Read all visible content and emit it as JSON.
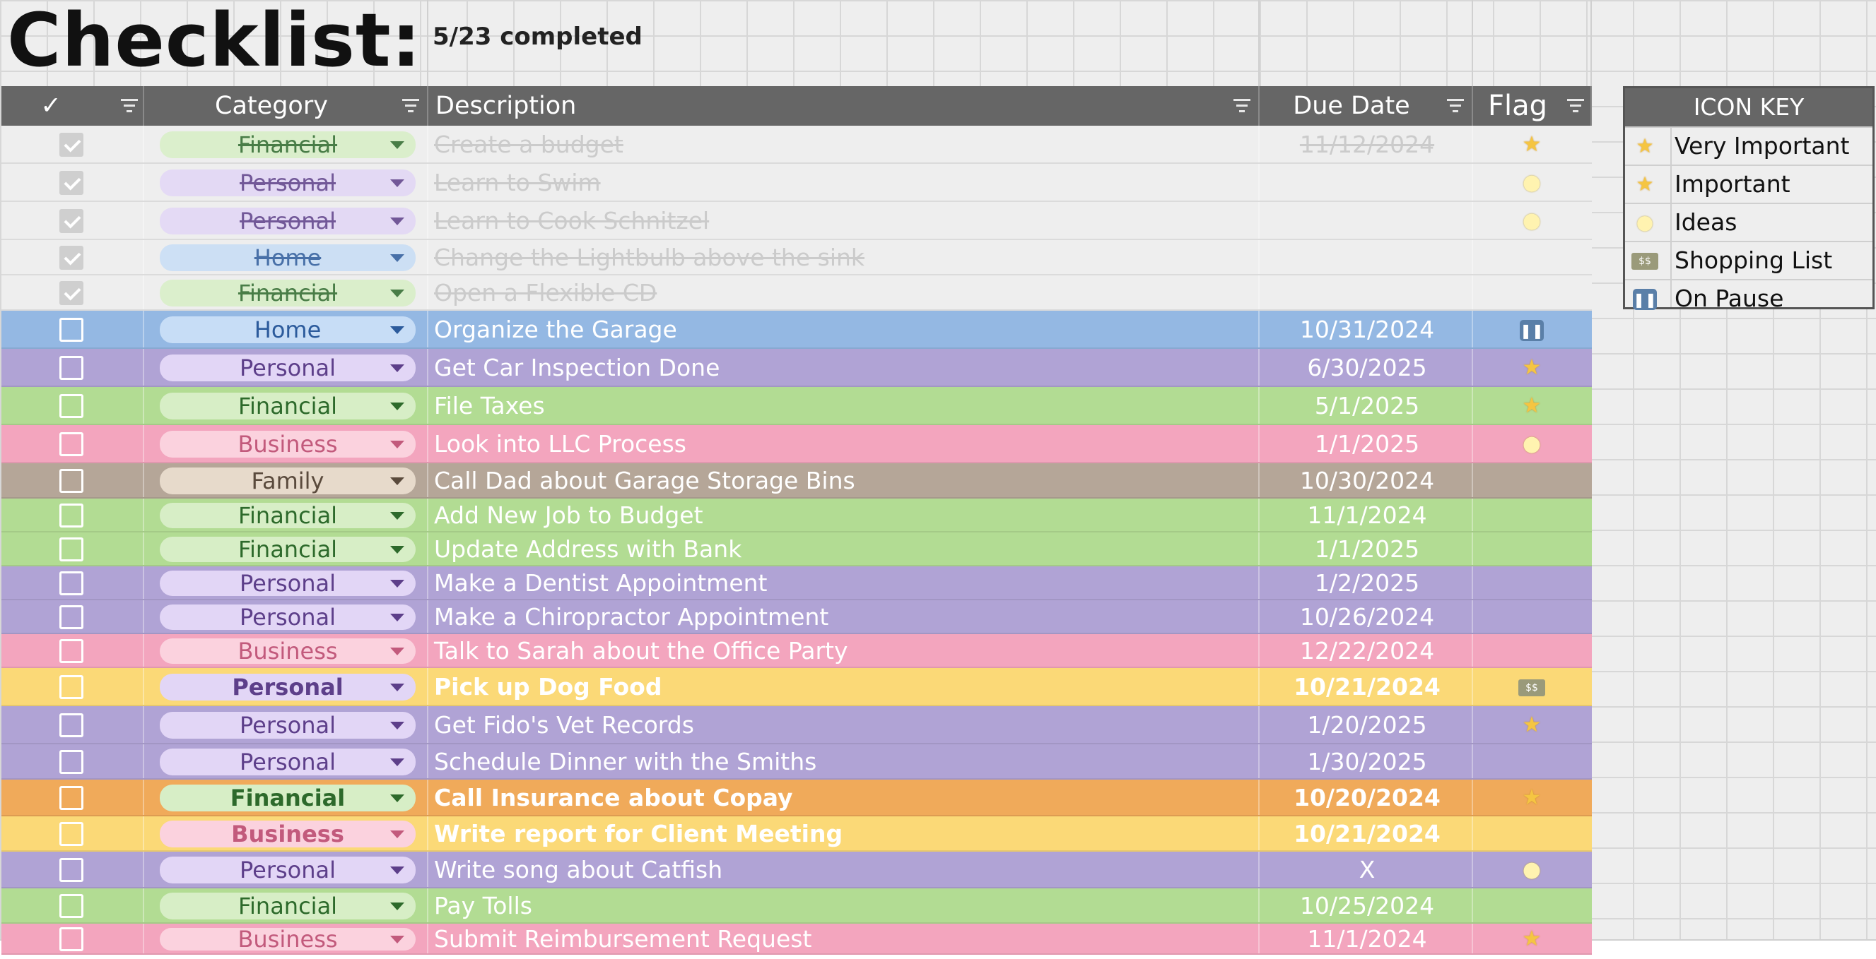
{
  "sheet": {
    "title": "Checklist:",
    "completed_text": "5/23 completed"
  },
  "header": {
    "check_label": "✓",
    "category_label": "Category",
    "description_label": "Description",
    "due_label": "Due Date",
    "flag_label": "Flag"
  },
  "colors": {
    "header_bg": "#666666",
    "done_row": "#eeeeee",
    "Home": "#94b8e3",
    "Personal": "#b0a3d5",
    "Financial": "#b2dc93",
    "Business": "#f3a5be",
    "Family": "#b5a698",
    "Yellow": "#fbd977",
    "Orange": "#f0aa5a"
  },
  "tasks": [
    {
      "done": true,
      "category": "Financial",
      "description": "Create a budget",
      "due": "11/12/2024",
      "flag": "star"
    },
    {
      "done": true,
      "category": "Personal",
      "description": "Learn to Swim",
      "due": "",
      "flag": "bulb"
    },
    {
      "done": true,
      "category": "Personal",
      "description": "Learn to Cook Schnitzel",
      "due": "",
      "flag": "bulb"
    },
    {
      "done": true,
      "category": "Home",
      "description": "Change the Lightbulb above the sink",
      "due": "",
      "flag": ""
    },
    {
      "done": true,
      "category": "Financial",
      "description": "Open a Flexible CD",
      "due": "",
      "flag": ""
    },
    {
      "done": false,
      "category": "Home",
      "description": "Organize the Garage",
      "due": "10/31/2024",
      "flag": "pause",
      "row_color": "Home"
    },
    {
      "done": false,
      "category": "Personal",
      "description": "Get Car Inspection Done",
      "due": "6/30/2025",
      "flag": "star",
      "row_color": "Personal"
    },
    {
      "done": false,
      "category": "Financial",
      "description": "File Taxes",
      "due": "5/1/2025",
      "flag": "star",
      "row_color": "Financial"
    },
    {
      "done": false,
      "category": "Business",
      "description": "Look into LLC Process",
      "due": "1/1/2025",
      "flag": "bulb",
      "row_color": "Business"
    },
    {
      "done": false,
      "category": "Family",
      "description": "Call Dad about Garage Storage Bins",
      "due": "10/30/2024",
      "flag": "",
      "row_color": "Family"
    },
    {
      "done": false,
      "category": "Financial",
      "description": "Add New Job to Budget",
      "due": "11/1/2024",
      "flag": "",
      "row_color": "Financial"
    },
    {
      "done": false,
      "category": "Financial",
      "description": "Update Address with Bank",
      "due": "1/1/2025",
      "flag": "",
      "row_color": "Financial"
    },
    {
      "done": false,
      "category": "Personal",
      "description": "Make a Dentist Appointment",
      "due": "1/2/2025",
      "flag": "",
      "row_color": "Personal"
    },
    {
      "done": false,
      "category": "Personal",
      "description": "Make a Chiropractor Appointment",
      "due": "10/26/2024",
      "flag": "",
      "row_color": "Personal"
    },
    {
      "done": false,
      "category": "Business",
      "description": "Talk to Sarah about the Office Party",
      "due": "12/22/2024",
      "flag": "",
      "row_color": "Business"
    },
    {
      "done": false,
      "category": "Personal",
      "description": "Pick up Dog Food",
      "due": "10/21/2024",
      "flag": "cash",
      "row_color": "Yellow",
      "bold": true
    },
    {
      "done": false,
      "category": "Personal",
      "description": "Get Fido's Vet Records",
      "due": "1/20/2025",
      "flag": "star",
      "row_color": "Personal"
    },
    {
      "done": false,
      "category": "Personal",
      "description": "Schedule Dinner with the Smiths",
      "due": "1/30/2025",
      "flag": "",
      "row_color": "Personal"
    },
    {
      "done": false,
      "category": "Financial",
      "description": "Call Insurance about Copay",
      "due": "10/20/2024",
      "flag": "star",
      "row_color": "Orange",
      "bold": true
    },
    {
      "done": false,
      "category": "Business",
      "description": "Write report for Client Meeting",
      "due": "10/21/2024",
      "flag": "",
      "row_color": "Yellow",
      "bold": true
    },
    {
      "done": false,
      "category": "Personal",
      "description": "Write song about Catfish",
      "due": "X",
      "flag": "bulb",
      "row_color": "Personal"
    },
    {
      "done": false,
      "category": "Financial",
      "description": "Pay Tolls",
      "due": "10/25/2024",
      "flag": "",
      "row_color": "Financial"
    },
    {
      "done": false,
      "category": "Business",
      "description": "Submit Reimbursement Request",
      "due": "11/1/2024",
      "flag": "star",
      "row_color": "Business"
    }
  ],
  "icon_key": {
    "title": "ICON KEY",
    "items": [
      {
        "icon": "star",
        "label": "Very Important"
      },
      {
        "icon": "star",
        "label": "Important"
      },
      {
        "icon": "bulb",
        "label": "Ideas"
      },
      {
        "icon": "cash",
        "label": "Shopping List"
      },
      {
        "icon": "pause",
        "label": "On Pause"
      }
    ]
  }
}
